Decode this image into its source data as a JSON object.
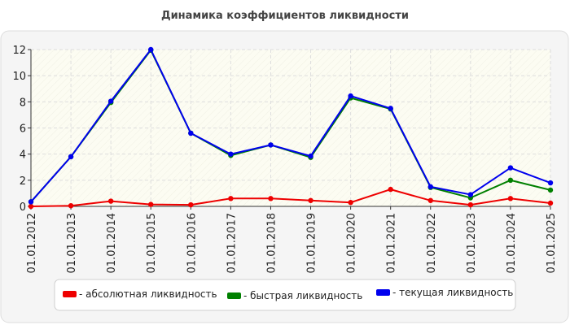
{
  "chart_data": {
    "type": "line",
    "title": "Динамика коэффициентов ликвидности",
    "xlabel": "",
    "ylabel": "",
    "ylim": [
      0,
      12
    ],
    "yticks": [
      "0",
      "2",
      "4",
      "6",
      "8",
      "10",
      "12"
    ],
    "categories": [
      "01.01.2012",
      "01.01.2013",
      "01.01.2014",
      "01.01.2015",
      "01.01.2016",
      "01.01.2017",
      "01.01.2018",
      "01.01.2019",
      "01.01.2020",
      "01.01.2021",
      "01.01.2022",
      "01.01.2023",
      "01.01.2024",
      "01.01.2025"
    ],
    "grid": true,
    "legend_position": "bottom",
    "series": [
      {
        "name": "- абсолютная ликвидность",
        "color": "#ee0000",
        "values": [
          0.0,
          0.05,
          0.4,
          0.15,
          0.12,
          0.6,
          0.6,
          0.45,
          0.3,
          1.3,
          0.45,
          0.12,
          0.6,
          0.25
        ]
      },
      {
        "name": "- быстрая ликвидность",
        "color": "#008000",
        "values": [
          0.35,
          3.8,
          7.95,
          11.95,
          5.6,
          3.9,
          4.7,
          3.75,
          8.3,
          7.45,
          1.45,
          0.65,
          2.0,
          1.25
        ]
      },
      {
        "name": "- текущая ликвидность",
        "color": "#0000ee",
        "values": [
          0.35,
          3.8,
          8.05,
          12.0,
          5.6,
          4.0,
          4.7,
          3.85,
          8.45,
          7.5,
          1.5,
          0.9,
          2.95,
          1.8
        ]
      }
    ]
  }
}
